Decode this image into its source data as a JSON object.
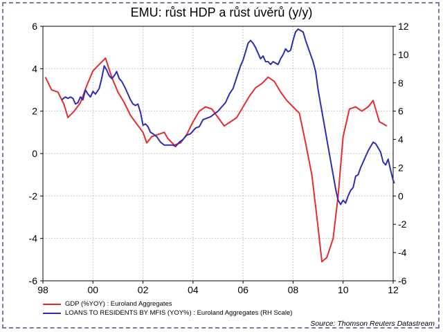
{
  "chart_data": {
    "type": "line",
    "title": "EMU: růst HDP a růst úvěrů (y/y)",
    "x_ticks": [
      "98",
      "00",
      "02",
      "04",
      "06",
      "08",
      "10",
      "12"
    ],
    "y_left": {
      "ticks": [
        "6",
        "4",
        "2",
        "0",
        "-2",
        "-4",
        "-6"
      ],
      "ylim": [
        -6,
        6
      ]
    },
    "y_right": {
      "ticks": [
        "12",
        "10",
        "8",
        "6",
        "4",
        "2",
        "0",
        "-2",
        "-4",
        "-6"
      ],
      "ylim": [
        -6,
        12
      ]
    },
    "xlim": [
      1998,
      2012
    ],
    "grid": true,
    "series": [
      {
        "name": "GDP (%YOY) : Euroland Aggregates",
        "axis": "left",
        "color": "#e82a2a",
        "points": [
          [
            1998.1,
            3.6
          ],
          [
            1998.35,
            3.0
          ],
          [
            1998.6,
            2.9
          ],
          [
            1998.85,
            2.3
          ],
          [
            1999.0,
            1.7
          ],
          [
            1999.25,
            2.0
          ],
          [
            1999.5,
            2.4
          ],
          [
            1999.75,
            3.2
          ],
          [
            2000.0,
            3.9
          ],
          [
            2000.25,
            4.2
          ],
          [
            2000.5,
            4.5
          ],
          [
            2000.75,
            3.6
          ],
          [
            2001.0,
            2.9
          ],
          [
            2001.25,
            2.4
          ],
          [
            2001.5,
            1.8
          ],
          [
            2001.75,
            1.4
          ],
          [
            2002.0,
            1.0
          ],
          [
            2002.15,
            0.5
          ],
          [
            2002.35,
            0.8
          ],
          [
            2002.6,
            0.9
          ],
          [
            2002.85,
            1.0
          ],
          [
            2003.0,
            0.7
          ],
          [
            2003.25,
            0.4
          ],
          [
            2003.5,
            0.5
          ],
          [
            2003.75,
            0.9
          ],
          [
            2004.0,
            1.5
          ],
          [
            2004.25,
            2.0
          ],
          [
            2004.5,
            2.2
          ],
          [
            2004.75,
            2.1
          ],
          [
            2005.0,
            1.7
          ],
          [
            2005.25,
            1.3
          ],
          [
            2005.5,
            1.5
          ],
          [
            2005.75,
            1.7
          ],
          [
            2006.0,
            2.2
          ],
          [
            2006.25,
            2.7
          ],
          [
            2006.5,
            3.1
          ],
          [
            2006.75,
            3.3
          ],
          [
            2007.0,
            3.6
          ],
          [
            2007.25,
            3.4
          ],
          [
            2007.5,
            2.9
          ],
          [
            2007.75,
            2.5
          ],
          [
            2008.0,
            2.2
          ],
          [
            2008.25,
            1.9
          ],
          [
            2008.5,
            0.5
          ],
          [
            2008.75,
            -1.0
          ],
          [
            2009.0,
            -3.5
          ],
          [
            2009.15,
            -5.1
          ],
          [
            2009.35,
            -4.9
          ],
          [
            2009.6,
            -4.0
          ],
          [
            2009.8,
            -2.0
          ],
          [
            2010.0,
            0.8
          ],
          [
            2010.25,
            2.1
          ],
          [
            2010.5,
            2.2
          ],
          [
            2010.75,
            2.0
          ],
          [
            2011.0,
            2.2
          ],
          [
            2011.2,
            2.5
          ],
          [
            2011.45,
            1.5
          ],
          [
            2011.75,
            1.3
          ]
        ]
      },
      {
        "name": "LOANS TO RESIDENTS BY MFIS (YOY%) : Euroland Aggregates (RH Scale)",
        "axis": "right",
        "color": "#2b2bb8",
        "points": [
          [
            1998.75,
            6.8
          ],
          [
            1998.9,
            7.0
          ],
          [
            1999.0,
            6.9
          ],
          [
            1999.1,
            7.0
          ],
          [
            1999.2,
            6.9
          ],
          [
            1999.3,
            6.5
          ],
          [
            1999.4,
            6.6
          ],
          [
            1999.5,
            7.0
          ],
          [
            1999.6,
            6.8
          ],
          [
            1999.7,
            7.5
          ],
          [
            1999.8,
            7.2
          ],
          [
            1999.9,
            7.0
          ],
          [
            2000.0,
            7.4
          ],
          [
            2000.1,
            7.2
          ],
          [
            2000.25,
            7.6
          ],
          [
            2000.35,
            8.3
          ],
          [
            2000.45,
            9.2
          ],
          [
            2000.55,
            8.9
          ],
          [
            2000.65,
            8.5
          ],
          [
            2000.75,
            8.3
          ],
          [
            2000.85,
            8.5
          ],
          [
            2000.95,
            8.8
          ],
          [
            2001.05,
            8.3
          ],
          [
            2001.15,
            8.1
          ],
          [
            2001.3,
            7.6
          ],
          [
            2001.4,
            7.2
          ],
          [
            2001.5,
            6.8
          ],
          [
            2001.6,
            6.5
          ],
          [
            2001.7,
            6.4
          ],
          [
            2001.8,
            6.5
          ],
          [
            2001.9,
            5.9
          ],
          [
            2002.0,
            5.0
          ],
          [
            2002.1,
            5.1
          ],
          [
            2002.2,
            4.9
          ],
          [
            2002.3,
            4.5
          ],
          [
            2002.4,
            4.4
          ],
          [
            2002.55,
            4.2
          ],
          [
            2002.7,
            3.8
          ],
          [
            2002.85,
            3.6
          ],
          [
            2003.0,
            3.6
          ],
          [
            2003.1,
            3.6
          ],
          [
            2003.2,
            3.6
          ],
          [
            2003.3,
            3.5
          ],
          [
            2003.45,
            3.8
          ],
          [
            2003.6,
            4.0
          ],
          [
            2003.75,
            4.3
          ],
          [
            2003.9,
            4.4
          ],
          [
            2004.1,
            4.8
          ],
          [
            2004.25,
            4.9
          ],
          [
            2004.4,
            5.4
          ],
          [
            2004.55,
            5.5
          ],
          [
            2004.7,
            5.6
          ],
          [
            2004.85,
            5.8
          ],
          [
            2005.0,
            6.0
          ],
          [
            2005.15,
            6.3
          ],
          [
            2005.3,
            6.6
          ],
          [
            2005.45,
            7.2
          ],
          [
            2005.6,
            7.6
          ],
          [
            2005.75,
            8.4
          ],
          [
            2005.9,
            9.2
          ],
          [
            2006.0,
            9.6
          ],
          [
            2006.1,
            10.2
          ],
          [
            2006.2,
            10.8
          ],
          [
            2006.3,
            11.0
          ],
          [
            2006.4,
            10.8
          ],
          [
            2006.5,
            10.5
          ],
          [
            2006.6,
            10.1
          ],
          [
            2006.7,
            9.7
          ],
          [
            2006.8,
            9.9
          ],
          [
            2006.9,
            9.5
          ],
          [
            2007.0,
            9.5
          ],
          [
            2007.1,
            9.3
          ],
          [
            2007.2,
            9.5
          ],
          [
            2007.3,
            9.4
          ],
          [
            2007.4,
            9.3
          ],
          [
            2007.5,
            9.7
          ],
          [
            2007.6,
            10.0
          ],
          [
            2007.7,
            10.4
          ],
          [
            2007.8,
            10.2
          ],
          [
            2007.9,
            10.3
          ],
          [
            2008.0,
            11.0
          ],
          [
            2008.1,
            11.6
          ],
          [
            2008.2,
            11.8
          ],
          [
            2008.3,
            11.7
          ],
          [
            2008.4,
            11.6
          ],
          [
            2008.5,
            11.0
          ],
          [
            2008.6,
            10.5
          ],
          [
            2008.7,
            10.0
          ],
          [
            2008.8,
            9.5
          ],
          [
            2008.9,
            8.8
          ],
          [
            2009.0,
            7.5
          ],
          [
            2009.1,
            6.5
          ],
          [
            2009.2,
            5.5
          ],
          [
            2009.3,
            4.5
          ],
          [
            2009.4,
            3.5
          ],
          [
            2009.5,
            2.5
          ],
          [
            2009.6,
            1.5
          ],
          [
            2009.7,
            0.5
          ],
          [
            2009.8,
            -0.3
          ],
          [
            2009.9,
            -0.6
          ],
          [
            2010.0,
            -0.3
          ],
          [
            2010.1,
            -0.5
          ],
          [
            2010.2,
            0.0
          ],
          [
            2010.3,
            0.4
          ],
          [
            2010.4,
            0.6
          ],
          [
            2010.5,
            1.4
          ],
          [
            2010.6,
            1.5
          ],
          [
            2010.7,
            2.0
          ],
          [
            2010.8,
            2.4
          ],
          [
            2010.9,
            2.8
          ],
          [
            2011.0,
            3.2
          ],
          [
            2011.1,
            3.5
          ],
          [
            2011.2,
            3.8
          ],
          [
            2011.3,
            3.7
          ],
          [
            2011.4,
            3.4
          ],
          [
            2011.5,
            3.1
          ],
          [
            2011.6,
            2.4
          ],
          [
            2011.7,
            2.2
          ],
          [
            2011.8,
            2.6
          ],
          [
            2011.9,
            1.8
          ],
          [
            2012.0,
            1.1
          ],
          [
            2012.05,
            0.9
          ]
        ]
      }
    ],
    "source": "Source: Thomson Reuters Datastream"
  }
}
